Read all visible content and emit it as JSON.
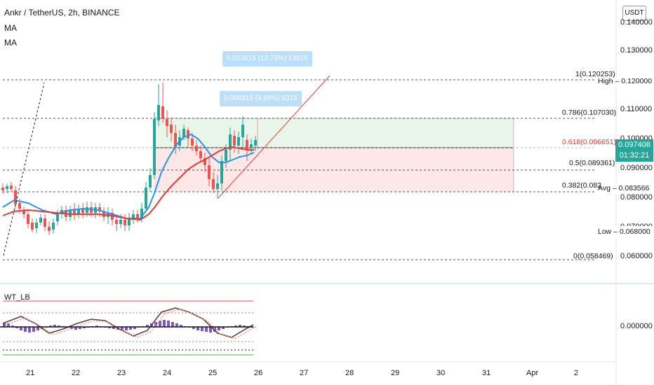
{
  "header": {
    "symbol_line": "Ankr / TetherUS, 2h, BINANCE",
    "indicators": [
      "MA",
      "MA"
    ],
    "indicator_pane_title": "WT_LB",
    "currency_button": "USDT"
  },
  "price_axis": {
    "ticks": [
      "0.140000",
      "0.130000",
      "0.110000",
      "0.100000",
      "0.090000",
      "0.080000",
      "0.070000",
      "0.060000"
    ],
    "indicator_tick": "0.000000"
  },
  "time_axis": {
    "ticks": [
      "21",
      "22",
      "23",
      "24",
      "25",
      "26",
      "27",
      "28",
      "29",
      "30",
      "31",
      "Apr",
      "2"
    ]
  },
  "markers": {
    "high_label": "High",
    "high_value": "0.120000",
    "avg_label": "Avg",
    "avg_value": "0.083566",
    "low_label": "Low",
    "low_value": "0.068000"
  },
  "current_price": {
    "value": "0.097408",
    "countdown": "01:32:21",
    "color": "#26a69a"
  },
  "fib_levels": [
    {
      "label": "1(0.120253)",
      "color": "#131722"
    },
    {
      "label": "0.786(0.107030)",
      "color": "#131722"
    },
    {
      "label": "0.618(0.096651)",
      "color": "#e53935"
    },
    {
      "label": "0.5(0.089361)",
      "color": "#131722"
    },
    {
      "label": "0.382(0.082",
      "color": "#131722"
    },
    {
      "label": "0(0.058469)",
      "color": "#131722"
    }
  ],
  "measurements": [
    {
      "text": "0.013615 (12.75%) 13615"
    },
    {
      "text": "0.009315 (9.56%) 9315"
    }
  ],
  "colors": {
    "up": "#26a69a",
    "down": "#ef5350",
    "ma_fast": "#2196f3",
    "ma_slow": "#e53935",
    "profit_zone": "#e8f5e9",
    "loss_zone": "#fde7e7",
    "osc_bar": "#7e57c2"
  },
  "chart_data": {
    "type": "candlestick",
    "price_range": [
      0.055,
      0.143
    ],
    "high": 0.12,
    "avg": 0.083566,
    "low": 0.068,
    "last": 0.097408
  }
}
